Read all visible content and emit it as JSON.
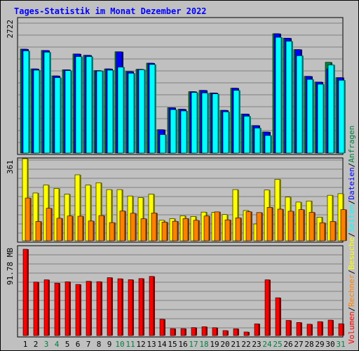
{
  "title": "Tages-Statistik im Monat Dezember 2022",
  "colors": {
    "title": "#0000ff",
    "anfragen": "#008040",
    "dateien": "#0000ff",
    "seiten": "#00ffff",
    "besuche": "#ffff00",
    "rechner": "#ff8000",
    "volumen": "#ff0000",
    "weekend_label": "#008040",
    "weekday_label": "#000000"
  },
  "right_legend": {
    "top": [
      {
        "text": "Anfragen",
        "color_key": "anfragen"
      },
      {
        "text": "/",
        "color_key": "weekday_label"
      },
      {
        "text": "Dateien",
        "color_key": "dateien"
      },
      {
        "text": "/",
        "color_key": "weekday_label"
      },
      {
        "text": "Seiten",
        "color_key": "seiten"
      },
      {
        "text": "/",
        "color_key": "weekday_label"
      },
      {
        "text": "Besuche",
        "color_key": "besuche"
      },
      {
        "text": "/",
        "color_key": "weekday_label"
      },
      {
        "text": "Rechner",
        "color_key": "rechner"
      },
      {
        "text": "/",
        "color_key": "weekday_label"
      },
      {
        "text": "Volumen",
        "color_key": "volumen"
      }
    ]
  },
  "chart_data": {
    "type": "bar",
    "title": "Tages-Statistik im Monat Dezember 2022",
    "categories": [
      "1",
      "2",
      "3",
      "4",
      "5",
      "6",
      "7",
      "8",
      "9",
      "10",
      "11",
      "12",
      "13",
      "14",
      "15",
      "16",
      "17",
      "18",
      "19",
      "20",
      "21",
      "22",
      "23",
      "24",
      "25",
      "26",
      "27",
      "28",
      "29",
      "30",
      "31"
    ],
    "weekend_days": [
      "3",
      "4",
      "10",
      "11",
      "17",
      "18",
      "24",
      "25",
      "31"
    ],
    "panels": [
      {
        "name": "top",
        "ylabel": "2722",
        "ymax": 2722,
        "series": [
          {
            "name": "Anfragen",
            "color_key": "anfragen",
            "values": [
              2370,
              1920,
              2340,
              1760,
              1900,
              2260,
              2230,
              1880,
              1920,
              2310,
              1860,
              1910,
              2050,
              533,
              1035,
              1000,
              1400,
              1430,
              1370,
              975,
              1480,
              890,
              628,
              480,
              2722,
              2620,
              2360,
              1750,
              1620,
              2070,
              1720
            ]
          },
          {
            "name": "Dateien",
            "color_key": "dateien",
            "values": [
              2370,
              1920,
              2340,
              1760,
              1900,
              2260,
              2230,
              1880,
              1920,
              2310,
              1860,
              1910,
              2050,
              533,
              1035,
              1000,
              1400,
              1430,
              1370,
              975,
              1480,
              890,
              628,
              480,
              2722,
              2620,
              2360,
              1750,
              1620,
              1920,
              1720
            ]
          },
          {
            "name": "Seiten",
            "color_key": "seiten",
            "values": [
              2330,
              1890,
              2300,
              1720,
              1880,
              2200,
              2200,
              1870,
              1890,
              1960,
              1820,
              1900,
              2020,
              420,
              990,
              960,
              1380,
              1370,
              1350,
              940,
              1430,
              840,
              570,
              400,
              2640,
              2550,
              2220,
              1680,
              1570,
              2010,
              1660
            ]
          }
        ]
      },
      {
        "name": "middle",
        "ylabel": "361",
        "ymax": 361,
        "series": [
          {
            "name": "Besuche",
            "color_key": "besuche",
            "values": [
              361,
              210,
              245,
              230,
              205,
              290,
              245,
              255,
              225,
              225,
              197,
              190,
              205,
              90,
              97,
              110,
              107,
              126,
              125,
              115,
              225,
              133,
              74,
              223,
              270,
              192,
              170,
              175,
              104,
              200,
              207
            ]
          },
          {
            "name": "Rechner",
            "color_key": "rechner",
            "values": [
              188,
              85,
              143,
              99,
              109,
              108,
              87,
              111,
              80,
              131,
              121,
              97,
              122,
              82,
              86,
              98,
              90,
              109,
              127,
              92,
              101,
              128,
              124,
              147,
              139,
              130,
              137,
              125,
              79,
              85,
              137
            ]
          }
        ]
      },
      {
        "name": "bottom",
        "ylabel": "91.78 MB",
        "ymax": 91.78,
        "series": [
          {
            "name": "Volumen",
            "color_key": "volumen",
            "values": [
              91.78,
              56.9,
              59.3,
              55.8,
              57.2,
              54.4,
              57.7,
              57.3,
              61.6,
              60.4,
              59.4,
              60.6,
              62.9,
              17.3,
              7.4,
              7.4,
              8.5,
              9.4,
              8.4,
              5.3,
              7.2,
              3.8,
              12.5,
              59.3,
              40.2,
              16.1,
              13.9,
              12.1,
              14.8,
              16.4,
              12.6
            ]
          }
        ]
      }
    ]
  }
}
